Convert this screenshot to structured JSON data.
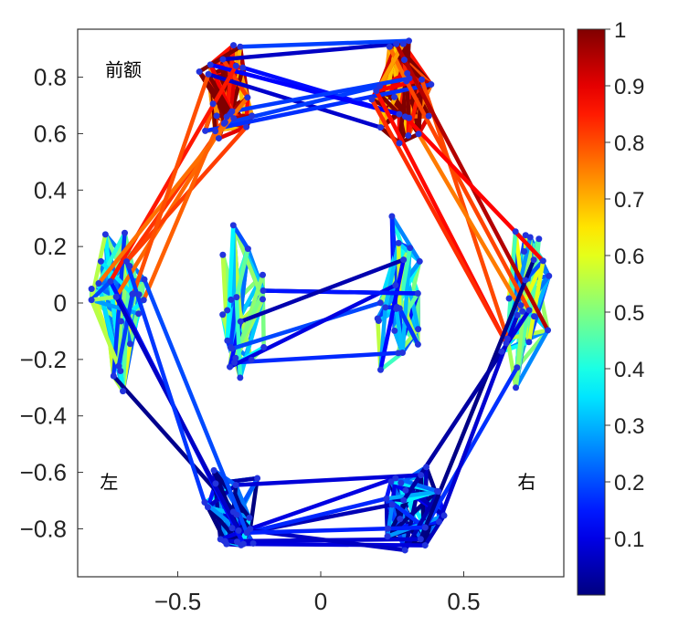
{
  "chart_data": {
    "type": "network",
    "x_ticks": [
      "−0.5",
      "0",
      "0.5"
    ],
    "x_tick_values": [
      -0.5,
      0,
      0.5
    ],
    "y_ticks": [
      "0.8",
      "0.6",
      "0.4",
      "0.2",
      "0",
      "−0.2",
      "−0.4",
      "−0.6",
      "−0.8"
    ],
    "y_tick_values": [
      0.8,
      0.6,
      0.4,
      0.2,
      0,
      -0.2,
      -0.4,
      -0.6,
      -0.8
    ],
    "xlim": [
      -0.85,
      0.85
    ],
    "ylim": [
      -0.97,
      0.97
    ],
    "colorbar": {
      "ticks": [
        "1",
        "0.9",
        "0.8",
        "0.7",
        "0.6",
        "0.5",
        "0.4",
        "0.3",
        "0.2",
        "0.1"
      ],
      "tick_values": [
        1,
        0.9,
        0.8,
        0.7,
        0.6,
        0.5,
        0.4,
        0.3,
        0.2,
        0.1
      ],
      "range": [
        0,
        1
      ],
      "colormap": "jet"
    },
    "region_labels": [
      {
        "text": "前额",
        "x": -0.69,
        "y": 0.83
      },
      {
        "text": "左",
        "x": -0.74,
        "y": -0.63
      },
      {
        "text": "右",
        "x": 0.72,
        "y": -0.63
      }
    ],
    "clusters": [
      {
        "name": "frontal-left",
        "cx": -0.33,
        "cy": 0.75,
        "rx": 0.11,
        "ry": 0.19,
        "n": 22,
        "level": 0.9
      },
      {
        "name": "frontal-right",
        "cx": 0.29,
        "cy": 0.75,
        "rx": 0.12,
        "ry": 0.19,
        "n": 22,
        "level": 0.9
      },
      {
        "name": "temporal-left",
        "cx": -0.72,
        "cy": 0.0,
        "rx": 0.11,
        "ry": 0.34,
        "n": 22,
        "level": 0.4
      },
      {
        "name": "temporal-right",
        "cx": 0.72,
        "cy": 0.0,
        "rx": 0.11,
        "ry": 0.34,
        "n": 22,
        "level": 0.4
      },
      {
        "name": "central-left",
        "cx": -0.27,
        "cy": 0.0,
        "rx": 0.09,
        "ry": 0.33,
        "n": 20,
        "level": 0.35
      },
      {
        "name": "central-right",
        "cx": 0.27,
        "cy": 0.0,
        "rx": 0.09,
        "ry": 0.33,
        "n": 20,
        "level": 0.35
      },
      {
        "name": "occipital-left",
        "cx": -0.3,
        "cy": -0.72,
        "rx": 0.14,
        "ry": 0.16,
        "n": 20,
        "level": 0.15
      },
      {
        "name": "occipital-right",
        "cx": 0.3,
        "cy": -0.72,
        "rx": 0.14,
        "ry": 0.16,
        "n": 20,
        "level": 0.15
      }
    ],
    "bridges": [
      {
        "from": "frontal-left",
        "to": "frontal-right",
        "count": 8,
        "level": 0.12
      },
      {
        "from": "occipital-left",
        "to": "occipital-right",
        "count": 8,
        "level": 0.1
      },
      {
        "from": "central-left",
        "to": "central-right",
        "count": 6,
        "level": 0.1
      },
      {
        "from": "frontal-left",
        "to": "temporal-left",
        "count": 7,
        "level": 0.85
      },
      {
        "from": "frontal-right",
        "to": "temporal-right",
        "count": 7,
        "level": 0.85
      },
      {
        "from": "temporal-left",
        "to": "occipital-left",
        "count": 5,
        "level": 0.1
      },
      {
        "from": "temporal-right",
        "to": "occipital-right",
        "count": 5,
        "level": 0.1
      }
    ]
  }
}
